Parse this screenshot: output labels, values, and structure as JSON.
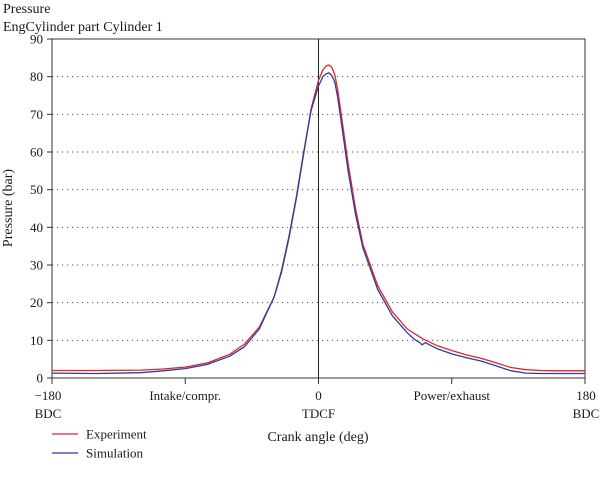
{
  "chart_data": {
    "type": "line",
    "title": "Pressure",
    "subtitle": "EngCylinder part Cylinder 1",
    "xlabel": "Crank angle (deg)",
    "ylabel": "Pressure (bar)",
    "xlim": [
      -180,
      180
    ],
    "ylim": [
      0,
      90
    ],
    "yticks": [
      0,
      10,
      20,
      30,
      40,
      50,
      60,
      70,
      80,
      90
    ],
    "grid": "dotted horizontal",
    "legend_position": "bottom-left",
    "x_tick_labels": [
      {
        "x": -180,
        "line1": "−180",
        "line2": "BDC"
      },
      {
        "x": -90,
        "line1": "Intake/compr.",
        "line2": ""
      },
      {
        "x": 0,
        "line1": "0",
        "line2": "TDCF"
      },
      {
        "x": 90,
        "line1": "Power/exhaust",
        "line2": ""
      },
      {
        "x": 180,
        "line1": "180",
        "line2": "BDC"
      }
    ],
    "reference_line_x": 0,
    "series": [
      {
        "name": "Experiment",
        "color": "#e0242c",
        "x": [
          -180,
          -150,
          -120,
          -105,
          -90,
          -75,
          -60,
          -50,
          -40,
          -30,
          -25,
          -20,
          -15,
          -10,
          -5,
          0,
          3,
          5,
          7,
          9,
          11,
          13,
          15,
          20,
          25,
          30,
          40,
          50,
          60,
          70,
          80,
          90,
          100,
          110,
          120,
          130,
          140,
          150,
          160,
          170,
          180
        ],
        "y": [
          2.0,
          2.0,
          2.1,
          2.4,
          2.9,
          4.0,
          6.3,
          9.0,
          13.5,
          21.5,
          28.0,
          37.0,
          47.5,
          59.5,
          71.5,
          79.0,
          81.8,
          82.8,
          83.1,
          82.5,
          80.5,
          76.5,
          71.0,
          57.0,
          45.0,
          35.5,
          24.5,
          17.5,
          13.0,
          10.5,
          8.6,
          7.3,
          6.1,
          5.2,
          4.0,
          2.8,
          2.2,
          2.0,
          1.9,
          1.9,
          1.9
        ]
      },
      {
        "name": "Simulation",
        "color": "#2b3f9b",
        "x": [
          -180,
          -150,
          -120,
          -105,
          -90,
          -75,
          -60,
          -50,
          -40,
          -30,
          -25,
          -20,
          -15,
          -10,
          -5,
          0,
          3,
          5,
          7,
          9,
          11,
          13,
          15,
          20,
          25,
          30,
          40,
          50,
          60,
          65,
          68,
          70,
          72,
          80,
          90,
          100,
          110,
          120,
          130,
          140,
          150,
          160,
          170,
          180
        ],
        "y": [
          1.3,
          1.2,
          1.4,
          1.9,
          2.5,
          3.6,
          5.8,
          8.3,
          13.0,
          21.5,
          28.5,
          37.5,
          48.0,
          60.0,
          71.0,
          77.5,
          80.0,
          80.7,
          81.0,
          80.3,
          78.5,
          74.5,
          69.0,
          55.0,
          43.5,
          34.5,
          23.5,
          16.5,
          12.0,
          10.2,
          9.5,
          8.8,
          9.4,
          7.8,
          6.4,
          5.4,
          4.5,
          3.2,
          1.9,
          1.3,
          1.2,
          1.2,
          1.2,
          1.2
        ]
      }
    ]
  }
}
